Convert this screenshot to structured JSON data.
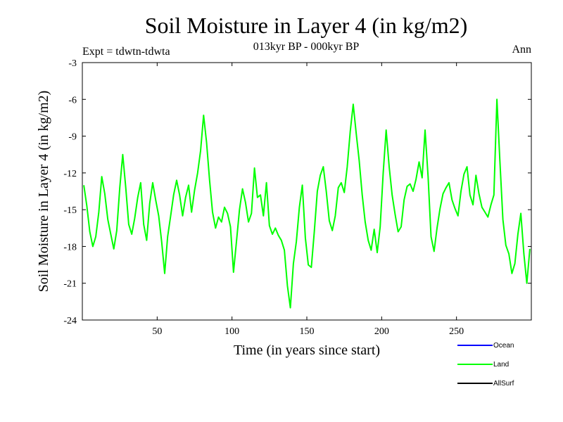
{
  "chart_data": {
    "type": "line",
    "title": "Soil Moisture in Layer 4 (in kg/m2)",
    "subtitle": "013kyr BP - 000kyr BP",
    "experiment_label": "Expt = tdwtn-tdwta",
    "season_label": "Ann",
    "xlabel": "Time (in years since start)",
    "ylabel": "Soil Moisture in Layer 4 (in kg/m2)",
    "xlim": [
      0,
      300
    ],
    "ylim": [
      -24,
      -3
    ],
    "xticks": [
      50,
      100,
      150,
      200,
      250
    ],
    "yticks": [
      -3,
      -6,
      -9,
      -12,
      -15,
      -18,
      -21,
      -24
    ],
    "legend": [
      {
        "name": "Ocean",
        "color": "#0000ff"
      },
      {
        "name": "Land",
        "color": "#00ff00"
      },
      {
        "name": "AllSurf",
        "color": "#000000"
      }
    ],
    "series": [
      {
        "name": "Land",
        "color": "#00ff00",
        "x": [
          1,
          3,
          5,
          7,
          9,
          11,
          13,
          15,
          17,
          19,
          21,
          23,
          25,
          27,
          29,
          31,
          33,
          35,
          37,
          39,
          41,
          43,
          45,
          47,
          49,
          51,
          53,
          55,
          57,
          59,
          61,
          63,
          65,
          67,
          69,
          71,
          73,
          75,
          77,
          79,
          81,
          83,
          85,
          87,
          89,
          91,
          93,
          95,
          97,
          99,
          101,
          103,
          105,
          107,
          109,
          111,
          113,
          115,
          117,
          119,
          121,
          123,
          125,
          127,
          129,
          131,
          133,
          135,
          137,
          139,
          141,
          143,
          145,
          147,
          149,
          151,
          153,
          155,
          157,
          159,
          161,
          163,
          165,
          167,
          169,
          171,
          173,
          175,
          177,
          179,
          181,
          183,
          185,
          187,
          189,
          191,
          193,
          195,
          197,
          199,
          201,
          203,
          205,
          207,
          209,
          211,
          213,
          215,
          217,
          219,
          221,
          223,
          225,
          227,
          229,
          231,
          233,
          235,
          237,
          239,
          241,
          243,
          245,
          247,
          249,
          251,
          253,
          255,
          257,
          259,
          261,
          263,
          265,
          267,
          269,
          271,
          273,
          275,
          277,
          279,
          281,
          283,
          285,
          287,
          289,
          291,
          293,
          295,
          297,
          299
        ],
        "values": [
          -13,
          -14.7,
          -16.8,
          -18,
          -17.2,
          -15.2,
          -12.3,
          -13.7,
          -15.8,
          -17,
          -18.2,
          -16.7,
          -13.2,
          -10.5,
          -13.2,
          -16.2,
          -17,
          -15.7,
          -14,
          -12.8,
          -16.2,
          -17.5,
          -14.5,
          -12.8,
          -14.2,
          -15.5,
          -17.6,
          -20.2,
          -17.2,
          -15.5,
          -13.8,
          -12.6,
          -13.8,
          -15.5,
          -14,
          -13,
          -15.2,
          -13.4,
          -12,
          -10.2,
          -7.3,
          -9.5,
          -12.6,
          -15.2,
          -16.5,
          -15.6,
          -16,
          -14.8,
          -15.3,
          -16.4,
          -20.1,
          -17.6,
          -15,
          -13.3,
          -14.4,
          -16,
          -15.3,
          -11.6,
          -14,
          -13.8,
          -15.5,
          -12.8,
          -16.3,
          -17,
          -16.5,
          -17.1,
          -17.5,
          -18.3,
          -21.2,
          -23,
          -19.4,
          -17.6,
          -14.8,
          -13,
          -17.3,
          -19.5,
          -19.7,
          -16.8,
          -13.5,
          -12.2,
          -11.5,
          -13.5,
          -15.9,
          -16.7,
          -15.5,
          -13.2,
          -12.8,
          -13.6,
          -11.5,
          -8.6,
          -6.4,
          -8.8,
          -11,
          -13.8,
          -16,
          -17.5,
          -18.3,
          -16.6,
          -18.5,
          -16.4,
          -12,
          -8.5,
          -11.5,
          -13.8,
          -15.4,
          -16.8,
          -16.4,
          -14.2,
          -13.1,
          -12.9,
          -13.5,
          -12.5,
          -11.1,
          -12.4,
          -8.5,
          -12.3,
          -17.2,
          -18.4,
          -16.5,
          -14.9,
          -13.7,
          -13.2,
          -12.8,
          -14.2,
          -14.9,
          -15.5,
          -13.5,
          -12.1,
          -11.5,
          -13.8,
          -14.6,
          -12.2,
          -13.7,
          -14.8,
          -15.2,
          -15.6,
          -14.6,
          -13.8,
          -6,
          -11,
          -15.8,
          -17.9,
          -18.6,
          -20.2,
          -19.4,
          -17,
          -15.3,
          -18.6,
          -21,
          -18.2
        ]
      }
    ]
  }
}
